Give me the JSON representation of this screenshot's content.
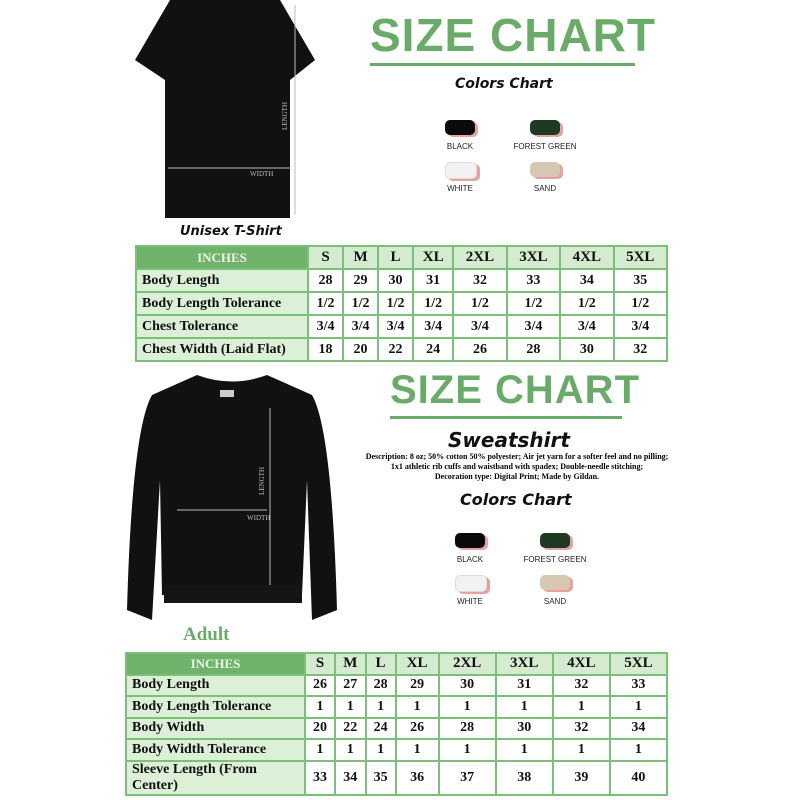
{
  "tshirt": {
    "title": "SIZE CHART",
    "colors_title": "Colors Chart",
    "caption": "Unisex T-Shirt",
    "length_label": "LENGTH",
    "width_label": "WIDTH",
    "colors": [
      {
        "name": "BLACK",
        "hex": "#0a0a0a"
      },
      {
        "name": "FOREST GREEN",
        "hex": "#1e3a22"
      },
      {
        "name": "WHITE",
        "hex": "#f2f2f2"
      },
      {
        "name": "SAND",
        "hex": "#d6c8b0"
      }
    ],
    "table": {
      "header": "INCHES",
      "sizes": [
        "S",
        "M",
        "L",
        "XL",
        "2XL",
        "3XL",
        "4XL",
        "5XL"
      ],
      "rows": [
        {
          "label": "Body Length",
          "values": [
            "28",
            "29",
            "30",
            "31",
            "32",
            "33",
            "34",
            "35"
          ]
        },
        {
          "label": "Body Length Tolerance",
          "values": [
            "1/2",
            "1/2",
            "1/2",
            "1/2",
            "1/2",
            "1/2",
            "1/2",
            "1/2"
          ]
        },
        {
          "label": "Chest Tolerance",
          "values": [
            "3/4",
            "3/4",
            "3/4",
            "3/4",
            "3/4",
            "3/4",
            "3/4",
            "3/4"
          ]
        },
        {
          "label": "Chest Width (Laid Flat)",
          "values": [
            "18",
            "20",
            "22",
            "24",
            "26",
            "28",
            "30",
            "32"
          ]
        }
      ]
    }
  },
  "sweatshirt": {
    "title": "SIZE CHART",
    "subtitle": "Sweatshirt",
    "description": [
      "Description: 8 oz; 50% cotton 50% polyester; Air jet yarn for a softer feel and no pilling;",
      "1x1 athletic rib cuffs and waistband with spadex; Double-needle stitching;",
      "Decoration type: Digital Print; Made by Gildan."
    ],
    "colors_title": "Colors Chart",
    "caption": "Adult",
    "length_label": "LENGTH",
    "width_label": "WIDTH",
    "colors": [
      {
        "name": "BLACK",
        "hex": "#0a0a0a"
      },
      {
        "name": "FOREST GREEN",
        "hex": "#1e3a22"
      },
      {
        "name": "WHITE",
        "hex": "#f2f2f2"
      },
      {
        "name": "SAND",
        "hex": "#d6c8b0"
      }
    ],
    "table": {
      "header": "INCHES",
      "sizes": [
        "S",
        "M",
        "L",
        "XL",
        "2XL",
        "3XL",
        "4XL",
        "5XL"
      ],
      "rows": [
        {
          "label": "Body Length",
          "values": [
            "26",
            "27",
            "28",
            "29",
            "30",
            "31",
            "32",
            "33"
          ]
        },
        {
          "label": "Body Length Tolerance",
          "values": [
            "1",
            "1",
            "1",
            "1",
            "1",
            "1",
            "1",
            "1"
          ]
        },
        {
          "label": "Body Width",
          "values": [
            "20",
            "22",
            "24",
            "26",
            "28",
            "30",
            "32",
            "34"
          ]
        },
        {
          "label": "Body Width Tolerance",
          "values": [
            "1",
            "1",
            "1",
            "1",
            "1",
            "1",
            "1",
            "1"
          ]
        },
        {
          "label": "Sleeve Length (From Center)",
          "values": [
            "33",
            "34",
            "35",
            "36",
            "37",
            "38",
            "39",
            "40"
          ]
        }
      ]
    }
  }
}
